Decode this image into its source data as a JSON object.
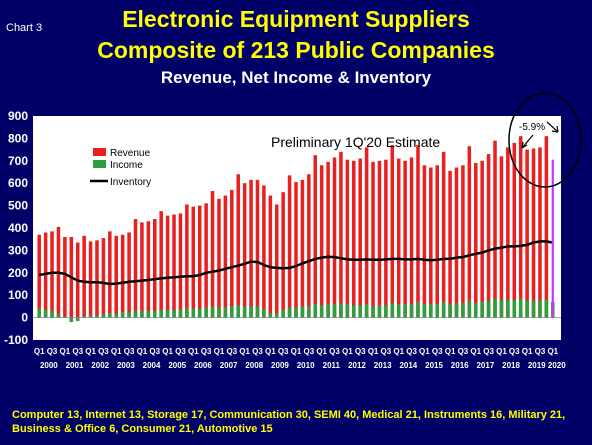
{
  "chart_label": "Chart 3",
  "title_line1": "Electronic Equipment Suppliers",
  "title_line2": "Composite of 213 Public Companies",
  "subtitle": "Revenue, Net Income & Inventory",
  "footnote": "Computer 13, Internet 13, Storage 17, Communication 30, SEMI 40, Medical 21, Instruments 16, Military 21, Business & Office 6, Consumer 21, Automotive 15",
  "annotation": "Preliminary 1Q'20 Estimate",
  "callout": "-5.9%",
  "colors": {
    "background": "#000066",
    "plot": "#ffffff",
    "revenue": "#e82020",
    "income": "#2e9e3e",
    "inventory": "#000000",
    "estimate": "#cc33ff",
    "title": "#ffff00"
  },
  "chart_data": {
    "type": "bar",
    "ylim": [
      -100,
      900
    ],
    "yticks": [
      "900",
      "800",
      "700",
      "600",
      "500",
      "400",
      "300",
      "200",
      "100",
      "0",
      "-100"
    ],
    "grid": false,
    "legend_position": "top-left",
    "years": [
      "2000",
      "2001",
      "2002",
      "2003",
      "2004",
      "2005",
      "2006",
      "2007",
      "2008",
      "2009",
      "2010",
      "2011",
      "2012",
      "2013",
      "2014",
      "2015",
      "2016",
      "2017",
      "2018",
      "2019",
      "2020"
    ],
    "quarter_tick_labels": [
      "Q1",
      "Q3",
      "Q1",
      "Q3",
      "Q1",
      "Q3",
      "Q1",
      "Q3",
      "Q1",
      "Q3",
      "Q1",
      "Q3",
      "Q1",
      "Q3",
      "Q1",
      "Q3",
      "Q1",
      "Q3",
      "Q1",
      "Q3",
      "Q1",
      "Q3",
      "Q1",
      "Q3",
      "Q1",
      "Q3",
      "Q1",
      "Q3",
      "Q1",
      "Q3",
      "Q1",
      "Q3",
      "Q1",
      "Q3",
      "Q1",
      "Q3",
      "Q1",
      "Q3",
      "Q1",
      "Q3",
      "Q1"
    ],
    "series": [
      {
        "name": "Revenue",
        "type": "bar",
        "values": [
          370,
          380,
          385,
          405,
          360,
          360,
          335,
          365,
          340,
          345,
          355,
          385,
          365,
          370,
          380,
          440,
          425,
          430,
          440,
          475,
          455,
          460,
          465,
          505,
          495,
          500,
          510,
          565,
          530,
          545,
          570,
          640,
          600,
          615,
          615,
          590,
          545,
          505,
          560,
          635,
          605,
          615,
          640,
          725,
          680,
          695,
          715,
          740,
          705,
          700,
          710,
          760,
          695,
          700,
          705,
          770,
          710,
          700,
          715,
          770,
          680,
          670,
          680,
          740,
          655,
          670,
          680,
          765,
          690,
          700,
          730,
          790,
          720,
          760,
          780,
          810,
          750,
          755,
          760,
          810,
          705
        ]
      },
      {
        "name": "Income",
        "type": "bar",
        "values": [
          40,
          35,
          30,
          15,
          5,
          -20,
          -15,
          5,
          10,
          10,
          15,
          20,
          20,
          25,
          25,
          30,
          30,
          30,
          30,
          35,
          35,
          35,
          35,
          40,
          40,
          40,
          45,
          50,
          45,
          45,
          50,
          55,
          50,
          50,
          50,
          40,
          20,
          20,
          35,
          45,
          45,
          50,
          50,
          60,
          55,
          60,
          60,
          65,
          60,
          55,
          55,
          60,
          50,
          55,
          55,
          65,
          60,
          60,
          60,
          70,
          60,
          60,
          60,
          70,
          60,
          65,
          65,
          75,
          65,
          70,
          75,
          85,
          80,
          80,
          80,
          85,
          75,
          75,
          75,
          80,
          70
        ]
      },
      {
        "name": "Inventory",
        "type": "line",
        "values": [
          190,
          195,
          200,
          200,
          195,
          180,
          165,
          160,
          158,
          158,
          155,
          150,
          152,
          156,
          160,
          162,
          165,
          168,
          172,
          175,
          178,
          180,
          182,
          185,
          185,
          190,
          200,
          205,
          210,
          218,
          225,
          232,
          240,
          250,
          248,
          235,
          225,
          222,
          220,
          222,
          230,
          242,
          252,
          262,
          268,
          272,
          270,
          265,
          260,
          258,
          258,
          260,
          258,
          258,
          260,
          262,
          262,
          260,
          260,
          262,
          258,
          256,
          258,
          262,
          262,
          268,
          270,
          278,
          285,
          290,
          300,
          308,
          312,
          318,
          318,
          320,
          325,
          335,
          340,
          340,
          335
        ]
      }
    ]
  }
}
